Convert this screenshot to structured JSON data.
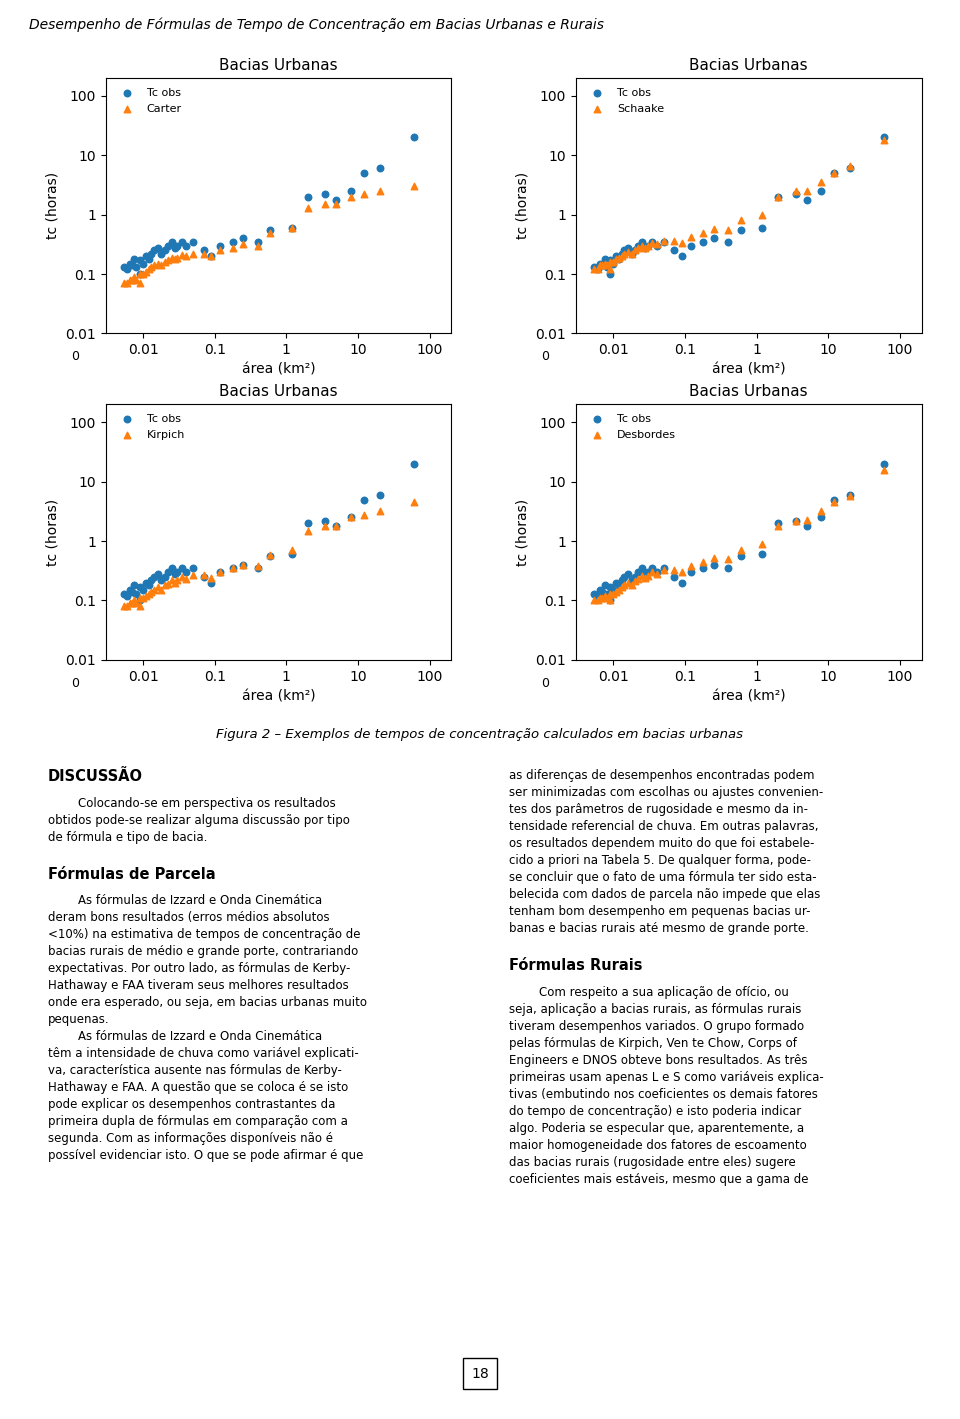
{
  "title": "Desempenho de Fórmulas de Tempo de Concentração em Bacias Urbanas e Rurais",
  "caption": "Figura 2 – Exemplos de tempos de concentração calculados em bacias urbanas",
  "page_number": "18",
  "columns": [
    [
      {
        "heading": "DISCUSSÃO"
      },
      {
        "text": "        Colocando-se em perspectiva os resultados\nobtidos pode-se realizar alguma discussão por tipo\nde fórmula e tipo de bacia."
      },
      {
        "heading": "Fórmulas de Parcela"
      },
      {
        "text": "        As fórmulas de Izzard e Onda Cinemática\nderam bons resultados (erros médios absolutos\n<10%) na estimativa de tempos de concentração de\nbacias rurais de médio e grande porte, contrariando\nexpectativas. Por outro lado, as fórmulas de Kerby-\nHathaway e FAA tiveram seus melhores resultados\nonde era esperado, ou seja, em bacias urbanas muito\npequenas.\n        As fórmulas de Izzard e Onda Cinemática\ntêm a intensidade de chuva como variável explicati-\nva, característica ausente nas fórmulas de Kerby-\nHathaway e FAA. A questão que se coloca é se isto\npode explicar os desempenhos contrastantes da\nprimeira dupla de fórmulas em comparação com a\nsegunda. Com as informações disponíveis não é\npossível evidenciar isto. O que se pode afirmar é que"
      }
    ],
    [
      {
        "text": "as diferenças de desempenhos encontradas podem\nser minimizadas com escolhas ou ajustes convenien-\ntes dos parâmetros de rugosidade e mesmo da in-\ntensidade referencial de chuva. Em outras palavras,\nos resultados dependem muito do que foi estabele-\ncido a priori na Tabela 5. De qualquer forma, pode-\nse concluir que o fato de uma fórmula ter sido esta-\nbelecida com dados de parcela não impede que elas\ntenham bom desempenho em pequenas bacias ur-\nbanas e bacias rurais até mesmo de grande porte."
      },
      {
        "heading": "Fórmulas Rurais"
      },
      {
        "text": "        Com respeito a sua aplicação de ofício, ou\nseja, aplicação a bacias rurais, as fórmulas rurais\ntiveram desempenhos variados. O grupo formado\npelas fórmulas de Kirpich, Ven te Chow, Corps of\nEngineers e DNOS obteve bons resultados. As três\nprimeiras usam apenas L e S como variáveis explica-\ntivas (embutindo nos coeficientes os demais fatores\ndo tempo de concentração) e isto poderia indicar\nalgo. Poderia se especular que, aparentemente, a\nmaior homogeneidade dos fatores de escoamento\ndas bacias rurais (rugosidade entre eles) sugere\ncoeficientes mais estáveis, mesmo que a gama de"
      }
    ]
  ],
  "chart_data": [
    {
      "type": "scatter",
      "title": "Bacias Urbanas",
      "xlabel": "área (km²)",
      "ylabel": "tc (horas)",
      "log": true,
      "xlim": [
        0.003,
        200
      ],
      "ylim": [
        0.01,
        200
      ],
      "xticks": [
        0.01,
        0.1,
        1,
        10,
        100
      ],
      "yticks": [
        0.01,
        0.1,
        1,
        10,
        100
      ],
      "grid": false,
      "legend": "upper left",
      "annotations": [
        "0"
      ],
      "x": [
        0.0054,
        0.006,
        0.0065,
        0.007,
        0.0075,
        0.008,
        0.009,
        0.009,
        0.01,
        0.011,
        0.012,
        0.013,
        0.014,
        0.016,
        0.018,
        0.02,
        0.022,
        0.025,
        0.028,
        0.03,
        0.035,
        0.04,
        0.05,
        0.07,
        0.09,
        0.12,
        0.18,
        0.25,
        0.4,
        0.6,
        1.2,
        2.0,
        3.5,
        5.0,
        8.0,
        12.0,
        20.0,
        60.0
      ],
      "series": [
        {
          "name": "Tc obs",
          "marker": "circle",
          "values": [
            0.13,
            0.12,
            0.15,
            0.14,
            0.18,
            0.13,
            0.1,
            0.17,
            0.15,
            0.2,
            0.18,
            0.22,
            0.25,
            0.28,
            0.22,
            0.25,
            0.3,
            0.35,
            0.28,
            0.3,
            0.35,
            0.3,
            0.35,
            0.25,
            0.2,
            0.3,
            0.35,
            0.4,
            0.35,
            0.55,
            0.6,
            2.0,
            2.2,
            1.8,
            2.5,
            5.0,
            6.0,
            20.0
          ]
        },
        {
          "name": "Carter",
          "marker": "triangle",
          "values": [
            0.07,
            0.07,
            0.08,
            0.08,
            0.09,
            0.08,
            0.07,
            0.1,
            0.1,
            0.11,
            0.12,
            0.13,
            0.14,
            0.15,
            0.14,
            0.16,
            0.17,
            0.19,
            0.18,
            0.19,
            0.21,
            0.2,
            0.22,
            0.22,
            0.2,
            0.25,
            0.28,
            0.32,
            0.3,
            0.5,
            0.6,
            1.3,
            1.5,
            1.5,
            2.0,
            2.2,
            2.5,
            3.0
          ]
        }
      ]
    },
    {
      "type": "scatter",
      "title": "Bacias Urbanas",
      "xlabel": "área (km²)",
      "ylabel": "tc (horas)",
      "log": true,
      "xlim": [
        0.003,
        200
      ],
      "ylim": [
        0.01,
        200
      ],
      "xticks": [
        0.01,
        0.1,
        1,
        10,
        100
      ],
      "yticks": [
        0.01,
        0.1,
        1,
        10,
        100
      ],
      "grid": false,
      "legend": "upper left",
      "annotations": [
        "0"
      ],
      "x": [
        0.0054,
        0.006,
        0.0065,
        0.007,
        0.0075,
        0.008,
        0.009,
        0.009,
        0.01,
        0.011,
        0.012,
        0.013,
        0.014,
        0.016,
        0.018,
        0.02,
        0.022,
        0.025,
        0.028,
        0.03,
        0.035,
        0.04,
        0.05,
        0.07,
        0.09,
        0.12,
        0.18,
        0.25,
        0.4,
        0.6,
        1.2,
        2.0,
        3.5,
        5.0,
        8.0,
        12.0,
        20.0,
        60.0
      ],
      "series": [
        {
          "name": "Tc obs",
          "marker": "circle",
          "values": [
            0.13,
            0.12,
            0.15,
            0.14,
            0.18,
            0.13,
            0.1,
            0.17,
            0.15,
            0.2,
            0.18,
            0.22,
            0.25,
            0.28,
            0.22,
            0.25,
            0.3,
            0.35,
            0.28,
            0.3,
            0.35,
            0.3,
            0.35,
            0.25,
            0.2,
            0.3,
            0.35,
            0.4,
            0.35,
            0.55,
            0.6,
            2.0,
            2.2,
            1.8,
            2.5,
            5.0,
            6.0,
            20.0
          ]
        },
        {
          "name": "Schaake",
          "marker": "triangle",
          "values": [
            0.12,
            0.12,
            0.14,
            0.14,
            0.15,
            0.14,
            0.12,
            0.16,
            0.16,
            0.18,
            0.19,
            0.2,
            0.22,
            0.24,
            0.22,
            0.25,
            0.27,
            0.3,
            0.28,
            0.3,
            0.33,
            0.32,
            0.36,
            0.36,
            0.34,
            0.42,
            0.5,
            0.58,
            0.55,
            0.8,
            1.0,
            2.0,
            2.5,
            2.5,
            3.5,
            5.0,
            6.5,
            18.0
          ]
        }
      ]
    },
    {
      "type": "scatter",
      "title": "Bacias Urbanas",
      "xlabel": "área (km²)",
      "ylabel": "tc (horas)",
      "log": true,
      "xlim": [
        0.003,
        200
      ],
      "ylim": [
        0.01,
        200
      ],
      "xticks": [
        0.01,
        0.1,
        1,
        10,
        100
      ],
      "yticks": [
        0.01,
        0.1,
        1,
        10,
        100
      ],
      "grid": false,
      "legend": "upper left",
      "annotations": [
        "0"
      ],
      "x": [
        0.0054,
        0.006,
        0.0065,
        0.007,
        0.0075,
        0.008,
        0.009,
        0.009,
        0.01,
        0.011,
        0.012,
        0.013,
        0.014,
        0.016,
        0.018,
        0.02,
        0.022,
        0.025,
        0.028,
        0.03,
        0.035,
        0.04,
        0.05,
        0.07,
        0.09,
        0.12,
        0.18,
        0.25,
        0.4,
        0.6,
        1.2,
        2.0,
        3.5,
        5.0,
        8.0,
        12.0,
        20.0,
        60.0
      ],
      "series": [
        {
          "name": "Tc obs",
          "marker": "circle",
          "values": [
            0.13,
            0.12,
            0.15,
            0.14,
            0.18,
            0.13,
            0.1,
            0.17,
            0.15,
            0.2,
            0.18,
            0.22,
            0.25,
            0.28,
            0.22,
            0.25,
            0.3,
            0.35,
            0.28,
            0.3,
            0.35,
            0.3,
            0.35,
            0.25,
            0.2,
            0.3,
            0.35,
            0.4,
            0.35,
            0.55,
            0.6,
            2.0,
            2.2,
            1.8,
            2.5,
            5.0,
            6.0,
            20.0
          ]
        },
        {
          "name": "Kirpich",
          "marker": "triangle",
          "values": [
            0.08,
            0.08,
            0.09,
            0.09,
            0.1,
            0.09,
            0.08,
            0.11,
            0.11,
            0.12,
            0.13,
            0.14,
            0.15,
            0.17,
            0.15,
            0.18,
            0.19,
            0.22,
            0.2,
            0.22,
            0.25,
            0.23,
            0.27,
            0.27,
            0.24,
            0.3,
            0.35,
            0.4,
            0.38,
            0.58,
            0.7,
            1.5,
            1.8,
            1.8,
            2.5,
            2.8,
            3.2,
            4.5
          ]
        }
      ]
    },
    {
      "type": "scatter",
      "title": "Bacias Urbanas",
      "xlabel": "área (km²)",
      "ylabel": "tc (horas)",
      "log": true,
      "xlim": [
        0.003,
        200
      ],
      "ylim": [
        0.01,
        200
      ],
      "xticks": [
        0.01,
        0.1,
        1,
        10,
        100
      ],
      "yticks": [
        0.01,
        0.1,
        1,
        10,
        100
      ],
      "grid": false,
      "legend": "upper left",
      "annotations": [
        "0"
      ],
      "x": [
        0.0054,
        0.006,
        0.0065,
        0.007,
        0.0075,
        0.008,
        0.009,
        0.009,
        0.01,
        0.011,
        0.012,
        0.013,
        0.014,
        0.016,
        0.018,
        0.02,
        0.022,
        0.025,
        0.028,
        0.03,
        0.035,
        0.04,
        0.05,
        0.07,
        0.09,
        0.12,
        0.18,
        0.25,
        0.4,
        0.6,
        1.2,
        2.0,
        3.5,
        5.0,
        8.0,
        12.0,
        20.0,
        60.0
      ],
      "series": [
        {
          "name": "Tc obs",
          "marker": "circle",
          "values": [
            0.13,
            0.12,
            0.15,
            0.14,
            0.18,
            0.13,
            0.1,
            0.17,
            0.15,
            0.2,
            0.18,
            0.22,
            0.25,
            0.28,
            0.22,
            0.25,
            0.3,
            0.35,
            0.28,
            0.3,
            0.35,
            0.3,
            0.35,
            0.25,
            0.2,
            0.3,
            0.35,
            0.4,
            0.35,
            0.55,
            0.6,
            2.0,
            2.2,
            1.8,
            2.5,
            5.0,
            6.0,
            20.0
          ]
        },
        {
          "name": "Desbordes",
          "marker": "triangle",
          "values": [
            0.1,
            0.1,
            0.11,
            0.11,
            0.12,
            0.11,
            0.1,
            0.13,
            0.13,
            0.14,
            0.15,
            0.17,
            0.18,
            0.2,
            0.18,
            0.21,
            0.23,
            0.26,
            0.24,
            0.26,
            0.3,
            0.28,
            0.32,
            0.32,
            0.3,
            0.38,
            0.45,
            0.52,
            0.5,
            0.72,
            0.9,
            1.8,
            2.2,
            2.3,
            3.2,
            4.5,
            5.8,
            16.0
          ]
        }
      ]
    }
  ]
}
